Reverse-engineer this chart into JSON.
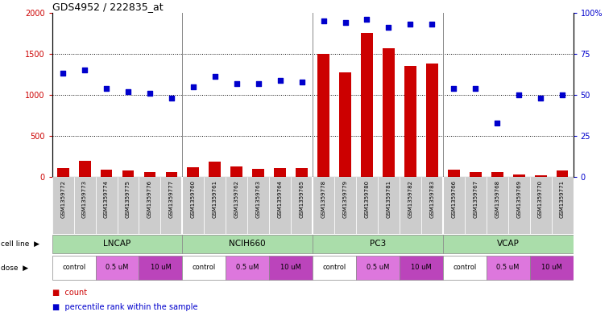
{
  "title": "GDS4952 / 222835_at",
  "samples": [
    "GSM1359772",
    "GSM1359773",
    "GSM1359774",
    "GSM1359775",
    "GSM1359776",
    "GSM1359777",
    "GSM1359760",
    "GSM1359761",
    "GSM1359762",
    "GSM1359763",
    "GSM1359764",
    "GSM1359765",
    "GSM1359778",
    "GSM1359779",
    "GSM1359780",
    "GSM1359781",
    "GSM1359782",
    "GSM1359783",
    "GSM1359766",
    "GSM1359767",
    "GSM1359768",
    "GSM1359769",
    "GSM1359770",
    "GSM1359771"
  ],
  "red_bars": [
    110,
    200,
    90,
    80,
    60,
    55,
    120,
    190,
    130,
    100,
    110,
    110,
    1500,
    1270,
    1750,
    1570,
    1350,
    1380,
    90,
    60,
    60,
    30,
    20,
    80
  ],
  "blue_pct": [
    63,
    65,
    54,
    52,
    51,
    48,
    55,
    61,
    57,
    57,
    59,
    58,
    95,
    94,
    96,
    91,
    93,
    93,
    54,
    54,
    33,
    50,
    48,
    50
  ],
  "cell_lines": [
    "LNCAP",
    "NCIH660",
    "PC3",
    "VCAP"
  ],
  "cell_line_spans": [
    [
      0,
      6
    ],
    [
      6,
      12
    ],
    [
      12,
      18
    ],
    [
      18,
      24
    ]
  ],
  "doses": [
    {
      "label": "control",
      "span": [
        0,
        2
      ],
      "color": "#ffffff"
    },
    {
      "label": "0.5 uM",
      "span": [
        2,
        4
      ],
      "color": "#dd77dd"
    },
    {
      "label": "10 uM",
      "span": [
        4,
        6
      ],
      "color": "#bb44bb"
    },
    {
      "label": "control",
      "span": [
        6,
        8
      ],
      "color": "#ffffff"
    },
    {
      "label": "0.5 uM",
      "span": [
        8,
        10
      ],
      "color": "#dd77dd"
    },
    {
      "label": "10 uM",
      "span": [
        10,
        12
      ],
      "color": "#bb44bb"
    },
    {
      "label": "control",
      "span": [
        12,
        14
      ],
      "color": "#ffffff"
    },
    {
      "label": "0.5 uM",
      "span": [
        14,
        16
      ],
      "color": "#dd77dd"
    },
    {
      "label": "10 uM",
      "span": [
        16,
        18
      ],
      "color": "#bb44bb"
    },
    {
      "label": "control",
      "span": [
        18,
        20
      ],
      "color": "#ffffff"
    },
    {
      "label": "0.5 uM",
      "span": [
        20,
        22
      ],
      "color": "#dd77dd"
    },
    {
      "label": "10 uM",
      "span": [
        22,
        24
      ],
      "color": "#bb44bb"
    }
  ],
  "ylim_left": [
    0,
    2000
  ],
  "ylim_right": [
    0,
    100
  ],
  "yticks_left": [
    0,
    500,
    1000,
    1500,
    2000
  ],
  "yticks_right": [
    0,
    25,
    50,
    75,
    100
  ],
  "bar_color": "#cc0000",
  "dot_color": "#0000cc",
  "cell_line_color": "#aaddaa",
  "sample_box_color": "#cccccc"
}
